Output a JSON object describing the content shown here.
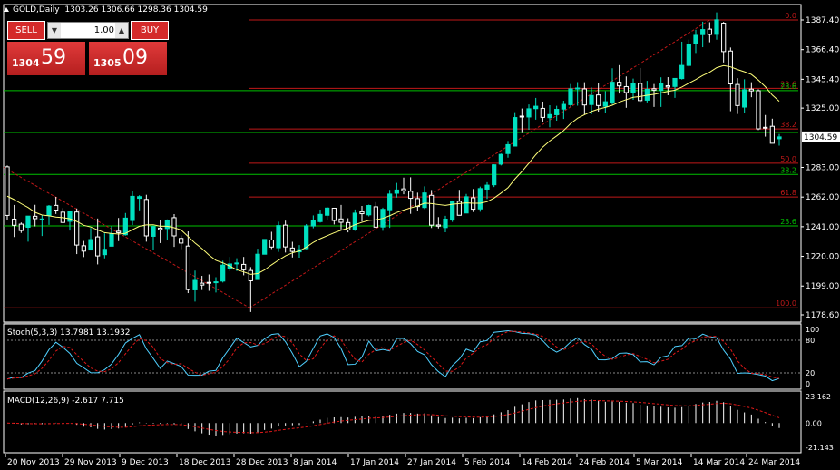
{
  "header": {
    "symbol": "GOLD,Daily",
    "ohlc": "1303.26 1306.66 1298.36 1304.59"
  },
  "trade_panel": {
    "sell_label": "SELL",
    "buy_label": "BUY",
    "lot": "1.00",
    "sell_price_small": "1304",
    "sell_price_big": "59",
    "buy_price_small": "1305",
    "buy_price_big": "09"
  },
  "colors": {
    "bull": "#00e0c0",
    "bear": "#ffffff",
    "ma": "#ffff7a",
    "fib": "#c01818",
    "green": "#00c000",
    "stoch_main": "#4fd0ff",
    "stoch_signal": "#e01818"
  },
  "price_axis": {
    "ticks": [
      "1387.40",
      "1366.40",
      "1345.40",
      "1325.00",
      "1304.59",
      "1283.00",
      "1262.00",
      "1241.00",
      "1220.00",
      "1199.00",
      "1178.60"
    ],
    "current": "1304.59"
  },
  "fib_levels": [
    {
      "label": "0.0",
      "price": 1387.4
    },
    {
      "label": "23.6",
      "price": 1339.0
    },
    {
      "label": "38.2",
      "price": 1310.2
    },
    {
      "label": "50.0",
      "price": 1286.0
    },
    {
      "label": "61.8",
      "price": 1262.0
    },
    {
      "label": "100.0",
      "price": 1183.6
    }
  ],
  "green_levels": [
    {
      "label": "23.6",
      "price": 1337.4
    },
    {
      "label": "",
      "price": 1307.7
    },
    {
      "label": "38.2",
      "price": 1278.0
    },
    {
      "label": "23.6",
      "price": 1241.6
    }
  ],
  "stoch": {
    "label": "Stoch(5,3,3) 13.7981 13.1932",
    "levels": [
      "100",
      "80",
      "20",
      "0"
    ]
  },
  "macd": {
    "label": "MACD(12,26,9) -2.617 7.715",
    "levels": [
      "23.162",
      "0.00",
      "-21.143"
    ]
  },
  "x_axis": [
    "20 Nov 2013",
    "29 Nov 2013",
    "9 Dec 2013",
    "18 Dec 2013",
    "28 Dec 2013",
    "8 Jan 2014",
    "17 Jan 2014",
    "27 Jan 2014",
    "5 Feb 2014",
    "14 Feb 2014",
    "24 Feb 2014",
    "5 Mar 2014",
    "14 Mar 2014",
    "24 Mar 2014"
  ],
  "chart_data": {
    "type": "candlestick",
    "symbol": "GOLD",
    "timeframe": "Daily",
    "ylim": [
      1178.6,
      1387.4
    ],
    "candles": [
      [
        1283.4,
        1284.4,
        1245.6,
        1249.0
      ],
      [
        1246.4,
        1256.4,
        1233.7,
        1242.0
      ],
      [
        1242.8,
        1244.0,
        1236.6,
        1238.3
      ],
      [
        1240.6,
        1248.1,
        1230.4,
        1248.5
      ],
      [
        1248.4,
        1256.5,
        1241.2,
        1246.7
      ],
      [
        1246.4,
        1249.0,
        1234.4,
        1246.5
      ],
      [
        1249.0,
        1256.3,
        1242.3,
        1255.6
      ],
      [
        1256.1,
        1262.1,
        1250.0,
        1252.8
      ],
      [
        1251.3,
        1254.2,
        1244.0,
        1244.0
      ],
      [
        1244.8,
        1252.0,
        1238.3,
        1251.7
      ],
      [
        1251.4,
        1253.9,
        1221.6,
        1228.0
      ],
      [
        1227.5,
        1230.9,
        1219.5,
        1223.7
      ],
      [
        1224.5,
        1240.1,
        1224.4,
        1231.9
      ],
      [
        1233.8,
        1246.8,
        1214.3,
        1220.3
      ],
      [
        1221.2,
        1236.3,
        1218.6,
        1225.0
      ],
      [
        1227.2,
        1241.4,
        1227.4,
        1236.0
      ],
      [
        1237.8,
        1247.2,
        1230.8,
        1236.8
      ],
      [
        1235.3,
        1250.7,
        1234.7,
        1247.1
      ],
      [
        1245.4,
        1266.5,
        1242.2,
        1262.5
      ],
      [
        1261.1,
        1263.3,
        1252.6,
        1262.3
      ],
      [
        1260.3,
        1263.6,
        1230.4,
        1234.5
      ],
      [
        1234.2,
        1241.8,
        1224.8,
        1241.1
      ],
      [
        1240.0,
        1245.8,
        1229.4,
        1239.0
      ],
      [
        1239.7,
        1246.2,
        1231.8,
        1245.1
      ],
      [
        1247.4,
        1249.9,
        1226.7,
        1234.5
      ],
      [
        1232.7,
        1234.8,
        1225.1,
        1229.4
      ],
      [
        1227.3,
        1237.7,
        1194.0,
        1196.5
      ],
      [
        1196.3,
        1209.9,
        1188.0,
        1203.0
      ],
      [
        1201.0,
        1206.2,
        1196.2,
        1199.7
      ],
      [
        1201.6,
        1207.2,
        1195.6,
        1201.2
      ],
      [
        1201.7,
        1205.3,
        1194.4,
        1202.0
      ],
      [
        1202.5,
        1216.9,
        1201.5,
        1213.8
      ],
      [
        1211.6,
        1219.6,
        1209.5,
        1214.6
      ],
      [
        1215.2,
        1218.7,
        1209.6,
        1215.3
      ],
      [
        1214.3,
        1219.6,
        1206.6,
        1210.5
      ],
      [
        1210.0,
        1212.4,
        1180.6,
        1202.7
      ],
      [
        1203.6,
        1225.4,
        1203.6,
        1221.5
      ],
      [
        1221.5,
        1232.1,
        1221.9,
        1232.0
      ],
      [
        1231.6,
        1237.4,
        1225.2,
        1226.6
      ],
      [
        1226.1,
        1244.5,
        1223.2,
        1241.8
      ],
      [
        1242.1,
        1245.3,
        1222.7,
        1226.7
      ],
      [
        1225.9,
        1230.3,
        1219.2,
        1223.5
      ],
      [
        1223.2,
        1228.0,
        1219.1,
        1224.8
      ],
      [
        1225.5,
        1242.8,
        1225.0,
        1241.6
      ],
      [
        1241.5,
        1249.0,
        1239.9,
        1245.3
      ],
      [
        1244.6,
        1253.1,
        1243.9,
        1249.7
      ],
      [
        1249.1,
        1255.1,
        1246.0,
        1254.2
      ],
      [
        1254.1,
        1254.4,
        1242.6,
        1245.4
      ],
      [
        1246.5,
        1256.4,
        1239.1,
        1244.1
      ],
      [
        1243.9,
        1247.0,
        1237.0,
        1238.7
      ],
      [
        1239.0,
        1253.2,
        1238.1,
        1250.6
      ],
      [
        1251.6,
        1255.7,
        1244.6,
        1250.2
      ],
      [
        1249.4,
        1256.6,
        1248.3,
        1256.0
      ],
      [
        1255.1,
        1258.4,
        1240.1,
        1240.7
      ],
      [
        1240.8,
        1254.5,
        1238.1,
        1253.3
      ],
      [
        1253.0,
        1267.1,
        1240.2,
        1264.1
      ],
      [
        1264.7,
        1272.0,
        1261.6,
        1267.0
      ],
      [
        1267.8,
        1275.8,
        1264.0,
        1266.5
      ],
      [
        1266.1,
        1276.0,
        1250.1,
        1261.1
      ],
      [
        1260.9,
        1265.1,
        1252.0,
        1255.3
      ],
      [
        1254.6,
        1269.6,
        1253.5,
        1264.9
      ],
      [
        1263.2,
        1267.0,
        1240.1,
        1242.1
      ],
      [
        1242.2,
        1247.8,
        1239.8,
        1241.4
      ],
      [
        1240.4,
        1248.7,
        1237.1,
        1246.4
      ],
      [
        1245.7,
        1259.6,
        1244.4,
        1259.0
      ],
      [
        1259.0,
        1267.1,
        1249.9,
        1249.1
      ],
      [
        1250.7,
        1264.2,
        1251.4,
        1262.2
      ],
      [
        1261.5,
        1267.7,
        1251.4,
        1253.4
      ],
      [
        1253.6,
        1269.4,
        1251.6,
        1268.0
      ],
      [
        1267.6,
        1272.5,
        1260.7,
        1270.4
      ],
      [
        1270.7,
        1285.2,
        1269.1,
        1284.8
      ],
      [
        1285.3,
        1292.8,
        1284.4,
        1292.2
      ],
      [
        1292.8,
        1301.7,
        1289.9,
        1299.1
      ],
      [
        1298.1,
        1322.1,
        1299.2,
        1318.3
      ],
      [
        1319.3,
        1324.7,
        1307.3,
        1319.0
      ],
      [
        1318.7,
        1327.6,
        1309.7,
        1324.5
      ],
      [
        1324.6,
        1332.2,
        1316.8,
        1326.3
      ],
      [
        1324.8,
        1329.6,
        1315.0,
        1318.4
      ],
      [
        1318.2,
        1327.0,
        1311.4,
        1320.4
      ],
      [
        1320.3,
        1326.6,
        1316.1,
        1324.1
      ],
      [
        1324.3,
        1330.2,
        1317.3,
        1327.6
      ],
      [
        1327.4,
        1342.0,
        1325.9,
        1338.6
      ],
      [
        1338.6,
        1343.4,
        1326.7,
        1339.2
      ],
      [
        1338.6,
        1343.3,
        1320.2,
        1327.2
      ],
      [
        1327.5,
        1339.6,
        1320.6,
        1333.9
      ],
      [
        1334.3,
        1343.0,
        1322.5,
        1326.8
      ],
      [
        1326.3,
        1337.0,
        1321.8,
        1329.5
      ],
      [
        1329.2,
        1353.2,
        1327.5,
        1343.3
      ],
      [
        1343.3,
        1355.4,
        1335.3,
        1340.7
      ],
      [
        1340.2,
        1347.4,
        1325.2,
        1336.0
      ],
      [
        1336.2,
        1345.9,
        1330.9,
        1342.4
      ],
      [
        1342.5,
        1353.4,
        1329.3,
        1330.3
      ],
      [
        1330.6,
        1344.3,
        1329.0,
        1338.3
      ],
      [
        1338.7,
        1342.0,
        1325.8,
        1337.7
      ],
      [
        1337.5,
        1346.8,
        1325.8,
        1342.1
      ],
      [
        1340.8,
        1346.9,
        1334.1,
        1339.9
      ],
      [
        1340.3,
        1345.2,
        1332.2,
        1346.0
      ],
      [
        1345.9,
        1372.0,
        1345.2,
        1355.2
      ],
      [
        1355.2,
        1373.5,
        1354.4,
        1370.0
      ],
      [
        1370.5,
        1380.5,
        1364.0,
        1376.5
      ],
      [
        1377.0,
        1386.2,
        1368.1,
        1380.6
      ],
      [
        1380.9,
        1385.8,
        1371.6,
        1377.1
      ],
      [
        1377.2,
        1392.8,
        1373.4,
        1387.5
      ],
      [
        1385.1,
        1386.0,
        1357.3,
        1365.0
      ],
      [
        1365.4,
        1367.9,
        1322.8,
        1342.1
      ],
      [
        1341.7,
        1346.2,
        1320.8,
        1326.8
      ],
      [
        1325.7,
        1345.4,
        1321.7,
        1338.0
      ],
      [
        1338.4,
        1343.3,
        1332.7,
        1337.2
      ],
      [
        1337.3,
        1338.3,
        1309.4,
        1310.3
      ],
      [
        1311.4,
        1320.1,
        1304.8,
        1311.3
      ],
      [
        1312.1,
        1317.5,
        1300.1,
        1300.1
      ],
      [
        1303.3,
        1306.7,
        1298.4,
        1304.6
      ]
    ],
    "ma": [
      1262.6,
      1260.2,
      1257.3,
      1254.6,
      1251.2,
      1249.3,
      1248.7,
      1247.8,
      1247.4,
      1246.6,
      1244.7,
      1242.0,
      1240.8,
      1238.7,
      1236.8,
      1236.2,
      1235.8,
      1236.3,
      1238.9,
      1241.3,
      1242.3,
      1242.4,
      1241.3,
      1241.3,
      1240.3,
      1238.7,
      1234.1,
      1229.4,
      1225.5,
      1220.9,
      1217.2,
      1215.4,
      1213.1,
      1210.5,
      1209.0,
      1207.3,
      1207.8,
      1210.4,
      1214.0,
      1217.3,
      1220.3,
      1222.5,
      1223.8,
      1226.5,
      1229.9,
      1232.5,
      1234.6,
      1236.7,
      1238.5,
      1240.0,
      1242.4,
      1244.1,
      1245.5,
      1245.9,
      1246.9,
      1248.8,
      1251.1,
      1252.8,
      1254.3,
      1255.7,
      1257.7,
      1257.4,
      1256.7,
      1256.1,
      1256.9,
      1257.4,
      1257.9,
      1257.6,
      1257.6,
      1258.7,
      1261.3,
      1264.8,
      1268.6,
      1274.8,
      1280.1,
      1285.9,
      1292.0,
      1297.4,
      1301.7,
      1305.3,
      1309.1,
      1314.0,
      1317.8,
      1320.3,
      1322.6,
      1324.3,
      1325.5,
      1327.0,
      1329.2,
      1331.0,
      1332.6,
      1333.2,
      1334.1,
      1334.7,
      1335.8,
      1336.8,
      1337.7,
      1339.9,
      1342.6,
      1345.2,
      1348.1,
      1350.4,
      1353.6,
      1355.1,
      1354.2,
      1352.3,
      1350.7,
      1348.8,
      1344.8,
      1340.1,
      1334.2,
      1329.8
    ]
  }
}
